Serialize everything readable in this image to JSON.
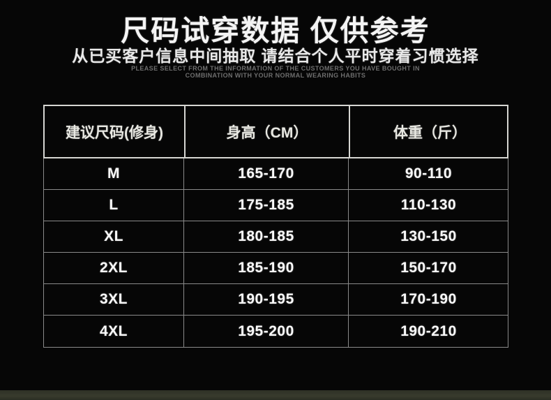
{
  "header": {
    "title": "尺码试穿数据 仅供参考",
    "subtitle": "从已买客户信息中间抽取 请结合个人平时穿着习惯选择",
    "caption_line1": "PLEASE SELECT FROM THE INFORMATION OF THE CUSTOMERS YOU HAVE BOUGHT IN",
    "caption_line2": "COMBINATION WITH YOUR NORMAL WEARING HABITS"
  },
  "chart_data": {
    "type": "table",
    "title": "尺码试穿数据 仅供参考",
    "columns": [
      "建议尺码(修身)",
      "身高（CM）",
      "体重（斤）"
    ],
    "rows": [
      [
        "M",
        "165-170",
        "90-110"
      ],
      [
        "L",
        "175-185",
        "110-130"
      ],
      [
        "XL",
        "180-185",
        "130-150"
      ],
      [
        "2XL",
        "185-190",
        "150-170"
      ],
      [
        "3XL",
        "190-195",
        "170-190"
      ],
      [
        "4XL",
        "195-200",
        "190-210"
      ]
    ]
  },
  "colors": {
    "background": "#060606",
    "text": "#fbfbfb",
    "header_border": "#d6d6d2",
    "row_border": "#8a8a8a",
    "bottom_strip": "#383b2d"
  }
}
